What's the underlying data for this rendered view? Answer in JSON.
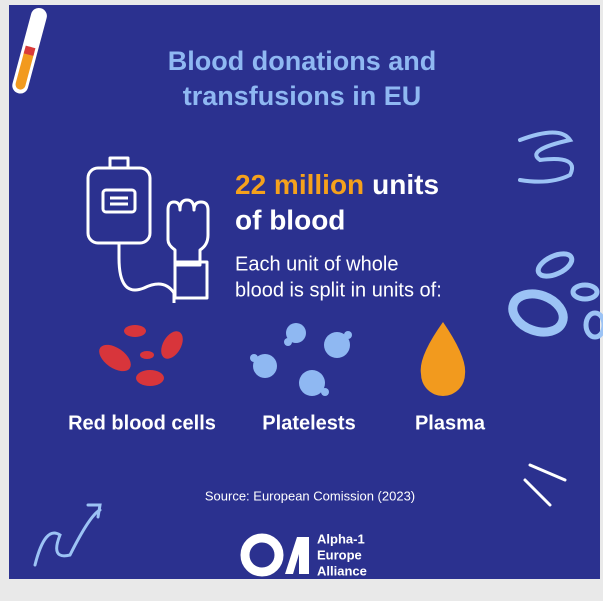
{
  "title": [
    "Blood donations and",
    "transfusions in EU"
  ],
  "headline": {
    "highlight": "22 million",
    "rest": "units",
    "line2": "of blood"
  },
  "description": [
    "Each unit of whole",
    "blood is split in units of:"
  ],
  "components": [
    "Red blood cells",
    "Platelests",
    "Plasma"
  ],
  "source": "Source: European Comission (2023)",
  "logo": [
    "Alpha-1",
    "Europe",
    "Alliance"
  ]
}
